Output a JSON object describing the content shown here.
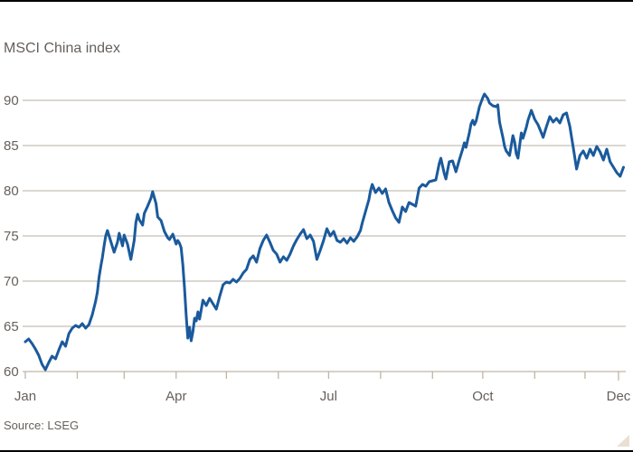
{
  "page": {
    "background": "#ffffff",
    "top_rule_color": "#000000",
    "bottom_rule_color": "#000000"
  },
  "chart": {
    "title": "MSCI China index",
    "source": "Source: LSEG",
    "colors": {
      "line": "#1A5A9C",
      "grid": "#C5BFB7",
      "axis": "#C2B5A3",
      "text": "#66605C",
      "watermark_triangle": "#E9DFD3"
    }
  },
  "chart_data": {
    "type": "line",
    "title": "MSCI China index",
    "series_name": "MSCI China index",
    "source": "Source: LSEG",
    "x_unit": "day_of_year",
    "y_ticks": [
      90,
      85,
      80,
      75,
      70,
      65,
      60
    ],
    "ylim": [
      60,
      91.5
    ],
    "grid": "horizontal-only",
    "legend": "none",
    "month_tick_days": [
      0,
      31,
      59,
      90,
      120,
      151,
      181,
      212,
      243,
      273,
      304,
      334,
      354
    ],
    "x_labels": [
      {
        "label": "Jan",
        "day": 0
      },
      {
        "label": "Apr",
        "day": 90
      },
      {
        "label": "Jul",
        "day": 181
      },
      {
        "label": "Oct",
        "day": 273
      },
      {
        "label": "Dec",
        "day": 354
      }
    ],
    "points": [
      [
        0,
        63.3
      ],
      [
        2,
        63.6
      ],
      [
        4,
        63.1
      ],
      [
        6,
        62.5
      ],
      [
        8,
        61.8
      ],
      [
        10,
        60.8
      ],
      [
        12,
        60.2
      ],
      [
        14,
        61.0
      ],
      [
        16,
        61.7
      ],
      [
        18,
        61.4
      ],
      [
        20,
        62.4
      ],
      [
        22,
        63.3
      ],
      [
        24,
        62.8
      ],
      [
        26,
        64.2
      ],
      [
        28,
        64.8
      ],
      [
        30,
        65.1
      ],
      [
        32,
        64.9
      ],
      [
        34,
        65.3
      ],
      [
        36,
        64.8
      ],
      [
        38,
        65.2
      ],
      [
        40,
        66.3
      ],
      [
        42,
        67.8
      ],
      [
        43,
        68.8
      ],
      [
        44,
        70.4
      ],
      [
        45,
        71.6
      ],
      [
        46,
        72.6
      ],
      [
        47,
        73.9
      ],
      [
        48,
        75.0
      ],
      [
        49,
        75.6
      ],
      [
        51,
        74.4
      ],
      [
        53,
        73.2
      ],
      [
        55,
        74.3
      ],
      [
        56,
        75.3
      ],
      [
        58,
        73.9
      ],
      [
        59,
        75.1
      ],
      [
        61,
        74.1
      ],
      [
        63,
        72.4
      ],
      [
        65,
        74.5
      ],
      [
        66,
        76.5
      ],
      [
        67,
        77.4
      ],
      [
        68,
        76.8
      ],
      [
        70,
        76.2
      ],
      [
        71,
        77.5
      ],
      [
        73,
        78.3
      ],
      [
        75,
        79.2
      ],
      [
        76,
        79.9
      ],
      [
        78,
        78.6
      ],
      [
        79,
        77.1
      ],
      [
        81,
        76.7
      ],
      [
        83,
        75.5
      ],
      [
        85,
        74.8
      ],
      [
        86,
        74.6
      ],
      [
        88,
        75.2
      ],
      [
        90,
        74.1
      ],
      [
        91,
        74.5
      ],
      [
        92,
        74.2
      ],
      [
        93,
        73.7
      ],
      [
        94,
        71.8
      ],
      [
        95,
        69.3
      ],
      [
        96,
        66.2
      ],
      [
        97,
        63.7
      ],
      [
        98,
        64.9
      ],
      [
        99,
        63.4
      ],
      [
        100,
        64.4
      ],
      [
        101,
        65.9
      ],
      [
        102,
        65.6
      ],
      [
        103,
        66.6
      ],
      [
        104,
        65.8
      ],
      [
        106,
        67.9
      ],
      [
        108,
        67.3
      ],
      [
        110,
        68.1
      ],
      [
        112,
        67.5
      ],
      [
        114,
        66.9
      ],
      [
        116,
        68.3
      ],
      [
        118,
        69.6
      ],
      [
        120,
        69.9
      ],
      [
        122,
        69.8
      ],
      [
        124,
        70.2
      ],
      [
        126,
        69.9
      ],
      [
        128,
        70.3
      ],
      [
        130,
        70.9
      ],
      [
        132,
        71.3
      ],
      [
        134,
        72.4
      ],
      [
        136,
        72.8
      ],
      [
        138,
        72.1
      ],
      [
        140,
        73.6
      ],
      [
        142,
        74.5
      ],
      [
        144,
        75.1
      ],
      [
        146,
        74.3
      ],
      [
        148,
        73.4
      ],
      [
        150,
        73.0
      ],
      [
        152,
        72.1
      ],
      [
        154,
        72.7
      ],
      [
        156,
        72.3
      ],
      [
        158,
        73.0
      ],
      [
        160,
        73.9
      ],
      [
        162,
        74.6
      ],
      [
        164,
        75.2
      ],
      [
        166,
        75.7
      ],
      [
        168,
        74.7
      ],
      [
        170,
        75.1
      ],
      [
        172,
        74.4
      ],
      [
        174,
        72.4
      ],
      [
        176,
        73.4
      ],
      [
        178,
        74.5
      ],
      [
        180,
        75.8
      ],
      [
        182,
        75.0
      ],
      [
        184,
        75.5
      ],
      [
        186,
        74.5
      ],
      [
        188,
        74.3
      ],
      [
        190,
        74.7
      ],
      [
        192,
        74.2
      ],
      [
        194,
        74.8
      ],
      [
        196,
        74.4
      ],
      [
        198,
        74.9
      ],
      [
        200,
        75.6
      ],
      [
        201,
        76.4
      ],
      [
        203,
        77.7
      ],
      [
        205,
        79.0
      ],
      [
        206,
        80.0
      ],
      [
        207,
        80.7
      ],
      [
        209,
        79.8
      ],
      [
        211,
        80.3
      ],
      [
        213,
        79.7
      ],
      [
        215,
        80.2
      ],
      [
        217,
        78.7
      ],
      [
        219,
        77.8
      ],
      [
        221,
        77.0
      ],
      [
        223,
        76.5
      ],
      [
        225,
        78.2
      ],
      [
        227,
        77.7
      ],
      [
        229,
        78.7
      ],
      [
        231,
        78.5
      ],
      [
        233,
        78.3
      ],
      [
        235,
        80.3
      ],
      [
        237,
        80.7
      ],
      [
        239,
        80.5
      ],
      [
        241,
        81.0
      ],
      [
        243,
        81.1
      ],
      [
        245,
        81.2
      ],
      [
        247,
        83.0
      ],
      [
        248,
        83.6
      ],
      [
        250,
        81.9
      ],
      [
        251,
        81.3
      ],
      [
        253,
        83.2
      ],
      [
        255,
        83.3
      ],
      [
        257,
        82.1
      ],
      [
        259,
        83.4
      ],
      [
        261,
        84.6
      ],
      [
        262,
        85.3
      ],
      [
        263,
        84.8
      ],
      [
        265,
        86.4
      ],
      [
        266,
        87.4
      ],
      [
        267,
        87.8
      ],
      [
        268,
        87.3
      ],
      [
        269,
        87.7
      ],
      [
        271,
        89.3
      ],
      [
        273,
        90.3
      ],
      [
        274,
        90.7
      ],
      [
        276,
        90.2
      ],
      [
        277,
        89.7
      ],
      [
        279,
        89.4
      ],
      [
        281,
        89.3
      ],
      [
        282,
        89.5
      ],
      [
        283,
        87.6
      ],
      [
        285,
        85.9
      ],
      [
        286,
        84.9
      ],
      [
        287,
        84.4
      ],
      [
        289,
        83.9
      ],
      [
        291,
        86.1
      ],
      [
        292,
        85.4
      ],
      [
        293,
        84.1
      ],
      [
        294,
        83.6
      ],
      [
        296,
        86.4
      ],
      [
        297,
        85.8
      ],
      [
        299,
        87.0
      ],
      [
        300,
        87.8
      ],
      [
        302,
        88.9
      ],
      [
        304,
        87.9
      ],
      [
        306,
        87.3
      ],
      [
        308,
        86.4
      ],
      [
        309,
        85.9
      ],
      [
        311,
        87.1
      ],
      [
        313,
        88.2
      ],
      [
        315,
        87.6
      ],
      [
        317,
        88.0
      ],
      [
        319,
        87.5
      ],
      [
        321,
        88.4
      ],
      [
        323,
        88.6
      ],
      [
        325,
        87.1
      ],
      [
        326,
        85.9
      ],
      [
        327,
        84.8
      ],
      [
        329,
        82.4
      ],
      [
        331,
        83.9
      ],
      [
        333,
        84.4
      ],
      [
        335,
        83.6
      ],
      [
        337,
        84.6
      ],
      [
        339,
        83.9
      ],
      [
        341,
        84.9
      ],
      [
        343,
        84.3
      ],
      [
        345,
        83.4
      ],
      [
        347,
        84.6
      ],
      [
        349,
        83.2
      ],
      [
        351,
        82.6
      ],
      [
        353,
        82.0
      ],
      [
        355,
        81.6
      ],
      [
        357,
        82.6
      ]
    ]
  }
}
